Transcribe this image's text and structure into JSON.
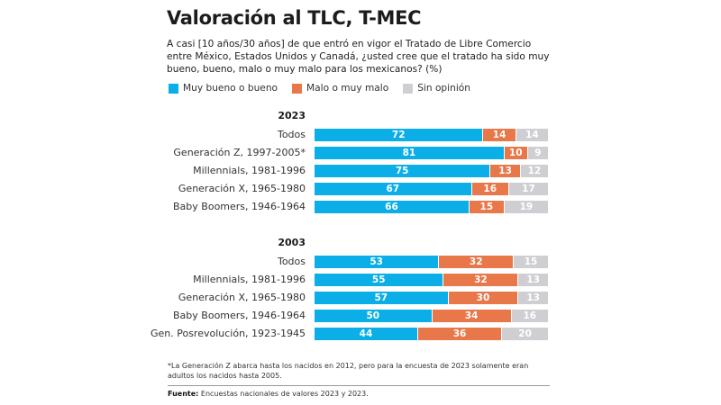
{
  "header": {
    "title": "Valoración al TLC, T-MEC",
    "subtitle": " A casi [10 años/30 años] de que entró en vigor el Tratado de Libre Comercio entre México, Estados Unidos y Canadá, ¿usted cree que el tratado ha sido muy bueno, bueno, malo o muy malo para los mexicanos? (%)"
  },
  "colors": {
    "good": "#0BAEE6",
    "bad": "#E8784A",
    "none": "#CFCFD3"
  },
  "legend": [
    {
      "label": "Muy bueno o bueno",
      "key": "good"
    },
    {
      "label": "Malo o muy malo",
      "key": "bad"
    },
    {
      "label": "Sin opinión",
      "key": "none"
    }
  ],
  "chart_data": {
    "type": "bar",
    "orientation": "horizontal",
    "stacked": true,
    "title": "Valoración al TLC, T-MEC",
    "unit": "%",
    "xlim": [
      0,
      100
    ],
    "series_names": [
      "Muy bueno o bueno",
      "Malo o muy malo",
      "Sin opinión"
    ],
    "groups": [
      {
        "year": "2023",
        "rows": [
          {
            "label": "Todos",
            "values": [
              72,
              14,
              14
            ]
          },
          {
            "label": "Generación Z, 1997-2005*",
            "values": [
              81,
              10,
              9
            ]
          },
          {
            "label": "Millennials, 1981-1996",
            "values": [
              75,
              13,
              12
            ]
          },
          {
            "label": "Generación X, 1965-1980",
            "values": [
              67,
              16,
              17
            ]
          },
          {
            "label": "Baby Boomers, 1946-1964",
            "values": [
              66,
              15,
              19
            ]
          }
        ]
      },
      {
        "year": "2003",
        "rows": [
          {
            "label": "Todos",
            "values": [
              53,
              32,
              15
            ]
          },
          {
            "label": "Millennials, 1981-1996",
            "values": [
              55,
              32,
              13
            ]
          },
          {
            "label": "Generación X, 1965-1980",
            "values": [
              57,
              30,
              13
            ]
          },
          {
            "label": "Baby Boomers, 1946-1964",
            "values": [
              50,
              34,
              16
            ]
          },
          {
            "label": "Gen. Posrevolución, 1923-1945",
            "values": [
              44,
              36,
              20
            ]
          }
        ]
      }
    ]
  },
  "footer": {
    "footnote": "*La Generación Z abarca hasta los nacidos en 2012, pero para la encuesta de 2023 solamente eran adultos los nacidos hasta 2005.",
    "source_label": "Fuente:",
    "source_text": " Encuestas nacionales de valores 2023 y 2023."
  }
}
